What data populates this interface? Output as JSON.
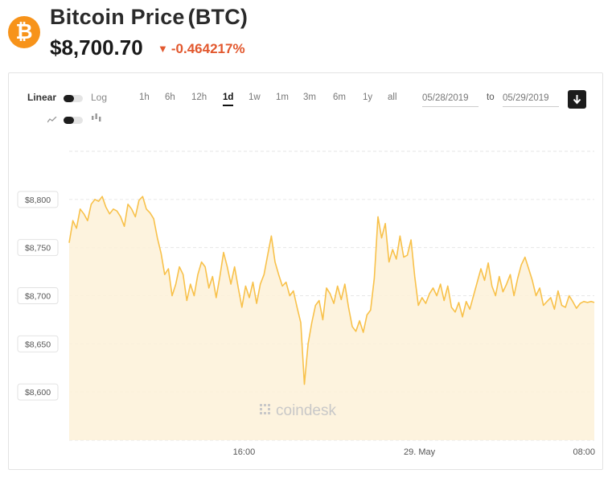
{
  "header": {
    "logo_symbol": "₿",
    "title": "Bitcoin Price",
    "ticker": "(BTC)",
    "price": "$8,700.70",
    "change_arrow": "▼",
    "change": "-0.464217%"
  },
  "controls": {
    "scale": {
      "linear": "Linear",
      "log": "Log"
    },
    "ranges": [
      "1h",
      "6h",
      "12h",
      "1d",
      "1w",
      "1m",
      "3m",
      "6m",
      "1y",
      "all"
    ],
    "active_range": "1d",
    "date_from": "05/28/2019",
    "to_label": "to",
    "date_to": "05/29/2019",
    "icons": [
      "line-chart-icon",
      "candlestick-icon",
      "download-icon"
    ]
  },
  "chart_data": {
    "type": "area",
    "title": "",
    "xlabel": "",
    "ylabel": "",
    "ylim": [
      8550,
      8850
    ],
    "yticks": [
      8600,
      8650,
      8700,
      8750,
      8800
    ],
    "ytick_labels": [
      "$8,600",
      "$8,650",
      "$8,700",
      "$8,750",
      "$8,800"
    ],
    "xtick_labels": [
      "16:00",
      "29. May",
      "08:00"
    ],
    "xtick_positions": [
      0.333,
      0.667,
      1.0
    ],
    "watermark": "coindesk",
    "line_color": "#f8c14a",
    "fill_color": "#fdf1d8",
    "grid": true,
    "x": [
      0.0,
      0.007,
      0.014,
      0.021,
      0.028,
      0.035,
      0.042,
      0.049,
      0.056,
      0.063,
      0.07,
      0.077,
      0.084,
      0.091,
      0.098,
      0.105,
      0.112,
      0.119,
      0.126,
      0.133,
      0.14,
      0.147,
      0.154,
      0.161,
      0.168,
      0.175,
      0.182,
      0.189,
      0.196,
      0.203,
      0.21,
      0.217,
      0.224,
      0.231,
      0.238,
      0.245,
      0.252,
      0.259,
      0.266,
      0.273,
      0.28,
      0.287,
      0.294,
      0.301,
      0.308,
      0.315,
      0.322,
      0.329,
      0.336,
      0.343,
      0.35,
      0.357,
      0.364,
      0.371,
      0.378,
      0.385,
      0.392,
      0.399,
      0.406,
      0.413,
      0.42,
      0.427,
      0.434,
      0.441,
      0.448,
      0.455,
      0.462,
      0.469,
      0.476,
      0.483,
      0.49,
      0.497,
      0.504,
      0.511,
      0.518,
      0.525,
      0.532,
      0.539,
      0.546,
      0.553,
      0.56,
      0.567,
      0.574,
      0.581,
      0.588,
      0.595,
      0.602,
      0.609,
      0.616,
      0.623,
      0.63,
      0.637,
      0.644,
      0.651,
      0.658,
      0.665,
      0.672,
      0.679,
      0.686,
      0.693,
      0.7,
      0.707,
      0.714,
      0.721,
      0.728,
      0.735,
      0.742,
      0.749,
      0.756,
      0.763,
      0.77,
      0.777,
      0.784,
      0.791,
      0.798,
      0.805,
      0.812,
      0.819,
      0.826,
      0.833,
      0.84,
      0.847,
      0.854,
      0.861,
      0.868,
      0.875,
      0.882,
      0.889,
      0.896,
      0.903,
      0.91,
      0.917,
      0.924,
      0.931,
      0.938,
      0.945,
      0.952,
      0.959,
      0.966,
      0.973,
      0.98,
      0.987,
      0.994,
      1.0
    ],
    "series": [
      {
        "values": [
          8755,
          8778,
          8770,
          8790,
          8785,
          8778,
          8795,
          8800,
          8798,
          8803,
          8792,
          8785,
          8790,
          8788,
          8782,
          8772,
          8795,
          8790,
          8782,
          8799,
          8803,
          8790,
          8786,
          8780,
          8760,
          8744,
          8722,
          8728,
          8700,
          8712,
          8730,
          8722,
          8695,
          8712,
          8700,
          8722,
          8735,
          8730,
          8708,
          8720,
          8698,
          8720,
          8745,
          8730,
          8712,
          8730,
          8708,
          8688,
          8710,
          8698,
          8714,
          8692,
          8712,
          8722,
          8742,
          8762,
          8735,
          8722,
          8710,
          8714,
          8700,
          8705,
          8688,
          8672,
          8608,
          8650,
          8672,
          8690,
          8695,
          8675,
          8708,
          8702,
          8692,
          8710,
          8696,
          8712,
          8688,
          8668,
          8663,
          8674,
          8662,
          8680,
          8685,
          8718,
          8782,
          8760,
          8775,
          8735,
          8748,
          8738,
          8762,
          8740,
          8742,
          8758,
          8720,
          8690,
          8698,
          8692,
          8702,
          8708,
          8700,
          8712,
          8695,
          8710,
          8688,
          8683,
          8693,
          8678,
          8694,
          8686,
          8700,
          8714,
          8728,
          8716,
          8734,
          8710,
          8700,
          8720,
          8704,
          8712,
          8722,
          8700,
          8718,
          8732,
          8740,
          8728,
          8716,
          8700,
          8708,
          8690,
          8694,
          8698,
          8686,
          8705,
          8690,
          8688,
          8700,
          8694,
          8687,
          8692,
          8694,
          8693,
          8694,
          8693
        ]
      }
    ]
  }
}
